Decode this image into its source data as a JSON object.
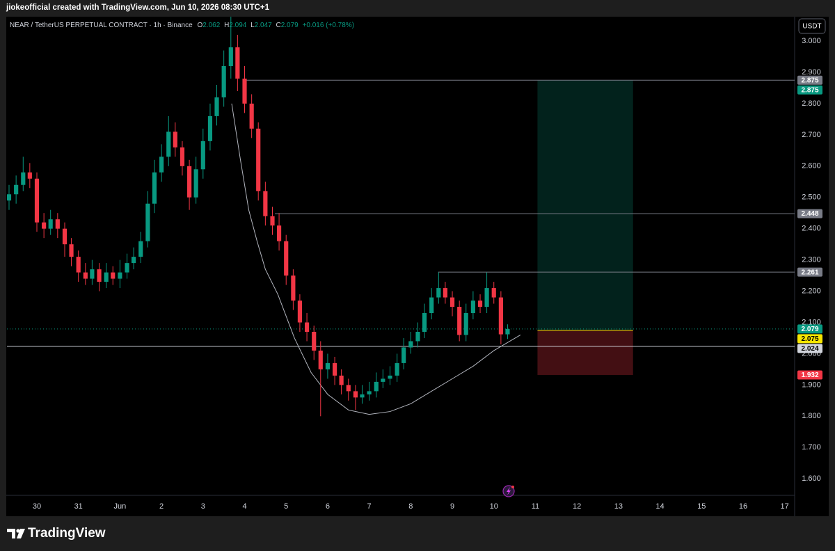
{
  "chart_data": {
    "type": "candlestick",
    "attribution": "jiokeofficial created with TradingView.com, Jun 10, 2026 08:30 UTC+1",
    "title": "NEAR / TetherUS PERPETUAL CONTRACT · 1h · Binance",
    "ohlc_labels": [
      "O",
      "H",
      "L",
      "C"
    ],
    "change": "+0.016 (+0.78%)",
    "currency": "USDT",
    "brand": "TradingView",
    "up_color": "#089981",
    "down_color": "#f23645",
    "grid": false,
    "xlim": [
      -0.72,
      18.24
    ],
    "xticks": [
      {
        "value": 0,
        "label": "30"
      },
      {
        "value": 1,
        "label": "31"
      },
      {
        "value": 2,
        "label": "Jun"
      },
      {
        "value": 3,
        "label": "2"
      },
      {
        "value": 4,
        "label": "3"
      },
      {
        "value": 5,
        "label": "4"
      },
      {
        "value": 6,
        "label": "5"
      },
      {
        "value": 7,
        "label": "6"
      },
      {
        "value": 8,
        "label": "7"
      },
      {
        "value": 9,
        "label": "8"
      },
      {
        "value": 10,
        "label": "9"
      },
      {
        "value": 11,
        "label": "10"
      },
      {
        "value": 12,
        "label": "11"
      },
      {
        "value": 13,
        "label": "12"
      },
      {
        "value": 14,
        "label": "13"
      },
      {
        "value": 15,
        "label": "14"
      },
      {
        "value": 16,
        "label": "15"
      },
      {
        "value": 17,
        "label": "16"
      },
      {
        "value": 18,
        "label": "17"
      }
    ],
    "ylim": [
      1.547,
      3.078
    ],
    "yticks": [
      {
        "value": 1.6,
        "label": "1.600"
      },
      {
        "value": 1.7,
        "label": "1.700"
      },
      {
        "value": 1.8,
        "label": "1.800"
      },
      {
        "value": 1.9,
        "label": "1.900"
      },
      {
        "value": 2.0,
        "label": "2.000"
      },
      {
        "value": 2.1,
        "label": "2.100"
      },
      {
        "value": 2.2,
        "label": "2.200"
      },
      {
        "value": 2.3,
        "label": "2.300"
      },
      {
        "value": 2.4,
        "label": "2.400"
      },
      {
        "value": 2.5,
        "label": "2.500"
      },
      {
        "value": 2.6,
        "label": "2.600"
      },
      {
        "value": 2.7,
        "label": "2.700"
      },
      {
        "value": 2.8,
        "label": "2.800"
      },
      {
        "value": 2.9,
        "label": "2.900"
      },
      {
        "value": 3.0,
        "label": "3.000"
      }
    ],
    "x": [
      -0.67,
      -0.5,
      -0.33,
      -0.17,
      0,
      0.17,
      0.33,
      0.5,
      0.67,
      0.83,
      1,
      1.17,
      1.33,
      1.5,
      1.67,
      1.83,
      2,
      2.17,
      2.33,
      2.5,
      2.67,
      2.83,
      3,
      3.17,
      3.33,
      3.5,
      3.67,
      3.83,
      4,
      4.17,
      4.33,
      4.5,
      4.67,
      4.83,
      5,
      5.17,
      5.33,
      5.5,
      5.67,
      5.83,
      6,
      6.17,
      6.33,
      6.5,
      6.67,
      6.83,
      7,
      7.17,
      7.33,
      7.5,
      7.67,
      7.83,
      8,
      8.17,
      8.33,
      8.5,
      8.67,
      8.83,
      9,
      9.17,
      9.33,
      9.5,
      9.67,
      9.83,
      10,
      10.17,
      10.33,
      10.5,
      10.67,
      10.83,
      11,
      11.17,
      11.33
    ],
    "open": [
      2.49,
      2.51,
      2.54,
      2.58,
      2.56,
      2.42,
      2.4,
      2.43,
      2.4,
      2.35,
      2.31,
      2.26,
      2.24,
      2.27,
      2.23,
      2.26,
      2.24,
      2.26,
      2.29,
      2.31,
      2.36,
      2.48,
      2.58,
      2.63,
      2.71,
      2.66,
      2.6,
      2.5,
      2.59,
      2.68,
      2.76,
      2.82,
      2.92,
      2.98,
      2.88,
      2.8,
      2.72,
      2.52,
      2.44,
      2.41,
      2.36,
      2.25,
      2.17,
      2.1,
      2.07,
      2.01,
      1.95,
      1.97,
      1.93,
      1.9,
      1.88,
      1.86,
      1.87,
      1.88,
      1.91,
      1.92,
      1.93,
      1.97,
      2.02,
      2.04,
      2.07,
      2.13,
      2.18,
      2.21,
      2.18,
      2.15,
      2.06,
      2.13,
      2.17,
      2.15,
      2.21,
      2.18,
      2.062
    ],
    "high": [
      2.54,
      2.57,
      2.63,
      2.61,
      2.58,
      2.45,
      2.46,
      2.45,
      2.42,
      2.37,
      2.33,
      2.29,
      2.3,
      2.29,
      2.29,
      2.28,
      2.3,
      2.32,
      2.34,
      2.39,
      2.52,
      2.62,
      2.67,
      2.76,
      2.74,
      2.68,
      2.62,
      2.63,
      2.72,
      2.8,
      2.86,
      2.97,
      3.08,
      3.02,
      2.92,
      2.83,
      2.74,
      2.55,
      2.47,
      2.45,
      2.38,
      2.27,
      2.19,
      2.13,
      2.09,
      2.04,
      2.0,
      1.99,
      1.95,
      1.92,
      1.9,
      1.9,
      1.91,
      1.94,
      1.95,
      1.96,
      2.0,
      2.05,
      2.07,
      2.1,
      2.16,
      2.21,
      2.26,
      2.23,
      2.2,
      2.17,
      2.16,
      2.2,
      2.19,
      2.26,
      2.23,
      2.2,
      2.094
    ],
    "low": [
      2.46,
      2.48,
      2.52,
      2.53,
      2.39,
      2.37,
      2.38,
      2.37,
      2.31,
      2.28,
      2.23,
      2.22,
      2.22,
      2.2,
      2.21,
      2.22,
      2.21,
      2.24,
      2.27,
      2.29,
      2.34,
      2.45,
      2.55,
      2.6,
      2.63,
      2.57,
      2.46,
      2.48,
      2.56,
      2.65,
      2.73,
      2.79,
      2.88,
      2.84,
      2.77,
      2.69,
      2.49,
      2.41,
      2.38,
      2.33,
      2.22,
      2.14,
      2.07,
      2.04,
      1.98,
      1.8,
      1.92,
      1.9,
      1.87,
      1.85,
      1.82,
      1.84,
      1.85,
      1.86,
      1.89,
      1.9,
      1.91,
      1.95,
      2.0,
      2.02,
      2.05,
      2.11,
      2.16,
      2.16,
      2.12,
      2.04,
      2.04,
      2.11,
      2.13,
      2.13,
      2.16,
      2.03,
      2.047
    ],
    "close": [
      2.51,
      2.54,
      2.58,
      2.56,
      2.42,
      2.4,
      2.43,
      2.4,
      2.35,
      2.31,
      2.26,
      2.24,
      2.27,
      2.23,
      2.26,
      2.24,
      2.26,
      2.29,
      2.31,
      2.36,
      2.48,
      2.58,
      2.63,
      2.71,
      2.66,
      2.6,
      2.5,
      2.59,
      2.68,
      2.76,
      2.82,
      2.92,
      2.98,
      2.88,
      2.8,
      2.72,
      2.52,
      2.44,
      2.41,
      2.36,
      2.25,
      2.17,
      2.1,
      2.07,
      2.01,
      1.95,
      1.97,
      1.93,
      1.9,
      1.88,
      1.86,
      1.87,
      1.88,
      1.91,
      1.92,
      1.93,
      1.97,
      2.02,
      2.04,
      2.07,
      2.13,
      2.18,
      2.21,
      2.18,
      2.15,
      2.06,
      2.13,
      2.17,
      2.15,
      2.21,
      2.18,
      2.062,
      2.079
    ],
    "levels": [
      {
        "value": 2.875,
        "start": 4.98,
        "color": "#787b86"
      },
      {
        "value": 2.448,
        "start": 5.73,
        "color": "#787b86"
      },
      {
        "value": 2.261,
        "start": 9.66,
        "color": "#787b86"
      },
      {
        "value": 2.024,
        "start": -0.72,
        "color": "#d1d4dc"
      }
    ],
    "curve": {
      "x": [
        4.69,
        4.9,
        5.1,
        5.3,
        5.5,
        5.8,
        6.2,
        6.6,
        7.0,
        7.5,
        8.0,
        8.5,
        9.0,
        9.5,
        10.0,
        10.5,
        11.0,
        11.64
      ],
      "y": [
        2.8,
        2.62,
        2.46,
        2.36,
        2.27,
        2.19,
        2.05,
        1.94,
        1.87,
        1.82,
        1.806,
        1.815,
        1.84,
        1.88,
        1.92,
        1.96,
        2.01,
        2.06
      ]
    },
    "position": {
      "entry": 2.075,
      "target": 2.875,
      "stop": 1.932,
      "start": 12.05,
      "end": 14.35
    }
  }
}
